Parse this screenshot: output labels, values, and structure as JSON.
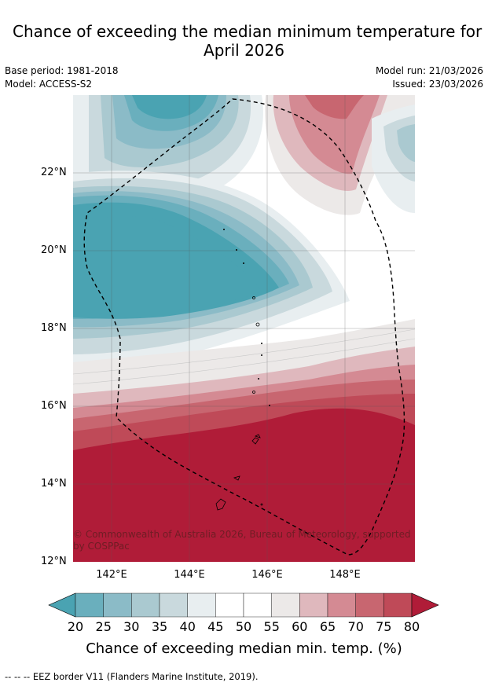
{
  "title_line1": "Chance of exceeding the median minimum temperature for",
  "title_line2": "April 2026",
  "base_period": "Base period: 1981-2018",
  "model": "Model: ACCESS-S2",
  "model_run": "Model run: 21/03/2026",
  "issued": "Issued: 23/03/2026",
  "y_ticks": [
    "22°N",
    "20°N",
    "18°N",
    "16°N",
    "14°N",
    "12°N"
  ],
  "x_ticks": [
    "142°E",
    "144°E",
    "146°E",
    "148°E"
  ],
  "colorbar": {
    "labels": [
      "20",
      "25",
      "30",
      "35",
      "40",
      "45",
      "50",
      "55",
      "60",
      "65",
      "70",
      "75",
      "80"
    ],
    "colors": [
      "#4aa3b2",
      "#6aafbd",
      "#8bbbc7",
      "#aac9d0",
      "#c9d9dd",
      "#e8eef0",
      "#ffffff",
      "#ffffff",
      "#ece9e8",
      "#dfb8bd",
      "#d48a93",
      "#c86670",
      "#bf4a58",
      "#b01c38"
    ],
    "title": "Chance of exceeding median min. temp. (%)"
  },
  "copyright": "© Commonwealth of Australia 2026, Bureau of Meteorology, supported by COSPPac",
  "footnote": "--  --  -- EEZ border V11 (Flanders Marine Institute, 2019)."
}
